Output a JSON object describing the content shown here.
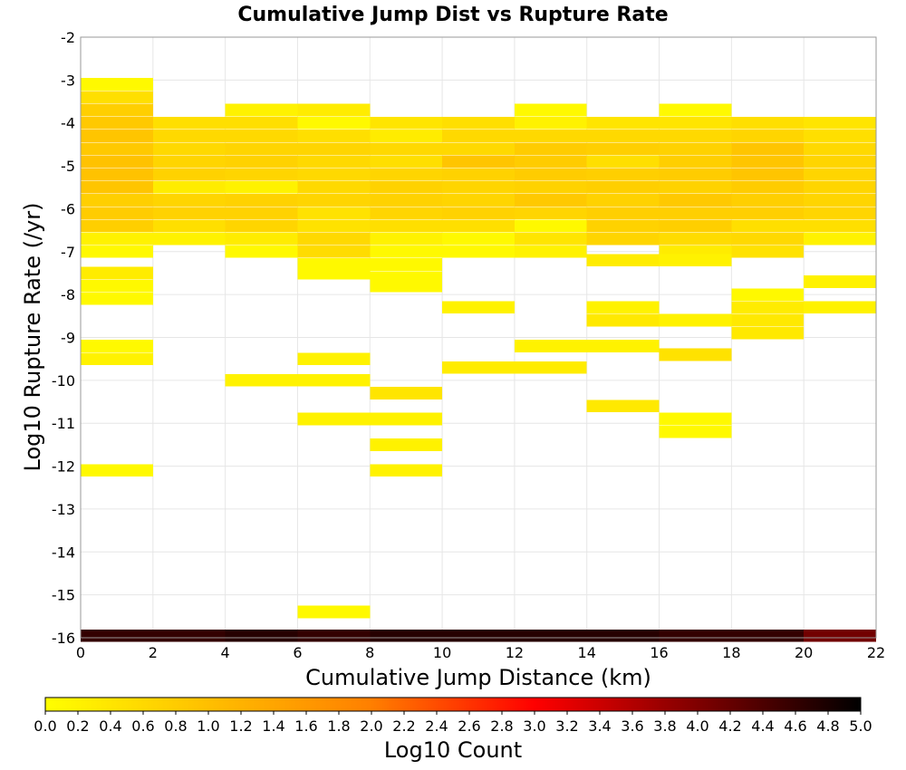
{
  "chart_data": {
    "type": "heatmap",
    "title": "Cumulative Jump Dist vs Rupture Rate",
    "xlabel": "Cumulative Jump Distance (km)",
    "ylabel": "Log10 Rupture Rate (/yr)",
    "xlim": [
      0,
      22
    ],
    "ylim": [
      -16,
      -2
    ],
    "x_ticks": [
      "0",
      "2",
      "4",
      "6",
      "8",
      "10",
      "12",
      "14",
      "16",
      "18",
      "20",
      "22"
    ],
    "y_ticks": [
      "-2",
      "-3",
      "-4",
      "-5",
      "-6",
      "-7",
      "-8",
      "-9",
      "-10",
      "-11",
      "-12",
      "-13",
      "-14",
      "-15",
      "-16"
    ],
    "x_bin_width": 2,
    "y_bin_height": 0.29,
    "grid": true,
    "colorbar": {
      "label": "Log10 Count",
      "range": [
        0,
        5
      ],
      "ticks": [
        "0.0",
        "0.2",
        "0.4",
        "0.6",
        "0.8",
        "1.0",
        "1.2",
        "1.4",
        "1.6",
        "1.8",
        "2.0",
        "2.2",
        "2.4",
        "2.6",
        "2.8",
        "3.0",
        "3.2",
        "3.4",
        "3.6",
        "3.8",
        "4.0",
        "4.2",
        "4.4",
        "4.6",
        "4.8",
        "5.0"
      ],
      "colors": [
        "#ffff00",
        "#ffbf00",
        "#ff7f00",
        "#ff0000",
        "#7f0000",
        "#000000"
      ]
    },
    "cells": [
      {
        "x": 1,
        "y": -3.1,
        "v": 0.1
      },
      {
        "x": 1,
        "y": -3.4,
        "v": 0.5
      },
      {
        "x": 1,
        "y": -3.7,
        "v": 0.75
      },
      {
        "x": 1,
        "y": -4.0,
        "v": 0.85
      },
      {
        "x": 1,
        "y": -4.3,
        "v": 0.9
      },
      {
        "x": 1,
        "y": -4.6,
        "v": 0.85
      },
      {
        "x": 1,
        "y": -4.9,
        "v": 0.95
      },
      {
        "x": 1,
        "y": -5.2,
        "v": 0.95
      },
      {
        "x": 1,
        "y": -5.5,
        "v": 0.9
      },
      {
        "x": 1,
        "y": -5.8,
        "v": 0.75
      },
      {
        "x": 1,
        "y": -6.1,
        "v": 0.8
      },
      {
        "x": 1,
        "y": -6.4,
        "v": 0.75
      },
      {
        "x": 1,
        "y": -6.7,
        "v": 0.2
      },
      {
        "x": 1,
        "y": -7.0,
        "v": 0.1
      },
      {
        "x": 1,
        "y": -7.5,
        "v": 0.3
      },
      {
        "x": 1,
        "y": -7.8,
        "v": 0.1
      },
      {
        "x": 1,
        "y": -8.1,
        "v": 0.1
      },
      {
        "x": 1,
        "y": -9.2,
        "v": 0.1
      },
      {
        "x": 1,
        "y": -9.5,
        "v": 0.2
      },
      {
        "x": 1,
        "y": -12.1,
        "v": 0.1
      },
      {
        "x": 3,
        "y": -4.0,
        "v": 0.5
      },
      {
        "x": 3,
        "y": -4.3,
        "v": 0.6
      },
      {
        "x": 3,
        "y": -4.6,
        "v": 0.6
      },
      {
        "x": 3,
        "y": -4.9,
        "v": 0.65
      },
      {
        "x": 3,
        "y": -5.2,
        "v": 0.7
      },
      {
        "x": 3,
        "y": -5.5,
        "v": 0.3
      },
      {
        "x": 3,
        "y": -5.8,
        "v": 0.65
      },
      {
        "x": 3,
        "y": -6.1,
        "v": 0.7
      },
      {
        "x": 3,
        "y": -6.4,
        "v": 0.5
      },
      {
        "x": 3,
        "y": -6.7,
        "v": 0.2
      },
      {
        "x": 5,
        "y": -3.7,
        "v": 0.2
      },
      {
        "x": 5,
        "y": -4.0,
        "v": 0.5
      },
      {
        "x": 5,
        "y": -4.3,
        "v": 0.6
      },
      {
        "x": 5,
        "y": -4.6,
        "v": 0.65
      },
      {
        "x": 5,
        "y": -4.9,
        "v": 0.7
      },
      {
        "x": 5,
        "y": -5.2,
        "v": 0.65
      },
      {
        "x": 5,
        "y": -5.5,
        "v": 0.2
      },
      {
        "x": 5,
        "y": -5.8,
        "v": 0.7
      },
      {
        "x": 5,
        "y": -6.1,
        "v": 0.7
      },
      {
        "x": 5,
        "y": -6.4,
        "v": 0.65
      },
      {
        "x": 5,
        "y": -6.7,
        "v": 0.3
      },
      {
        "x": 5,
        "y": -7.0,
        "v": 0.1
      },
      {
        "x": 5,
        "y": -10.0,
        "v": 0.2
      },
      {
        "x": 7,
        "y": -3.7,
        "v": 0.3
      },
      {
        "x": 7,
        "y": -4.0,
        "v": 0.1
      },
      {
        "x": 7,
        "y": -4.3,
        "v": 0.5
      },
      {
        "x": 7,
        "y": -4.6,
        "v": 0.65
      },
      {
        "x": 7,
        "y": -4.9,
        "v": 0.6
      },
      {
        "x": 7,
        "y": -5.2,
        "v": 0.6
      },
      {
        "x": 7,
        "y": -5.5,
        "v": 0.6
      },
      {
        "x": 7,
        "y": -5.8,
        "v": 0.65
      },
      {
        "x": 7,
        "y": -6.1,
        "v": 0.45
      },
      {
        "x": 7,
        "y": -6.4,
        "v": 0.45
      },
      {
        "x": 7,
        "y": -6.7,
        "v": 0.6
      },
      {
        "x": 7,
        "y": -7.0,
        "v": 0.55
      },
      {
        "x": 7,
        "y": -7.3,
        "v": 0.1
      },
      {
        "x": 7,
        "y": -7.5,
        "v": 0.1
      },
      {
        "x": 7,
        "y": -9.5,
        "v": 0.2
      },
      {
        "x": 7,
        "y": -10.0,
        "v": 0.2
      },
      {
        "x": 7,
        "y": -10.9,
        "v": 0.2
      },
      {
        "x": 7,
        "y": -15.4,
        "v": 0.1
      },
      {
        "x": 9,
        "y": -4.0,
        "v": 0.4
      },
      {
        "x": 9,
        "y": -4.3,
        "v": 0.3
      },
      {
        "x": 9,
        "y": -4.6,
        "v": 0.6
      },
      {
        "x": 9,
        "y": -4.9,
        "v": 0.5
      },
      {
        "x": 9,
        "y": -5.2,
        "v": 0.65
      },
      {
        "x": 9,
        "y": -5.5,
        "v": 0.7
      },
      {
        "x": 9,
        "y": -5.8,
        "v": 0.7
      },
      {
        "x": 9,
        "y": -6.1,
        "v": 0.65
      },
      {
        "x": 9,
        "y": -6.4,
        "v": 0.5
      },
      {
        "x": 9,
        "y": -6.7,
        "v": 0.2
      },
      {
        "x": 9,
        "y": -7.0,
        "v": 0.1
      },
      {
        "x": 9,
        "y": -7.3,
        "v": 0.1
      },
      {
        "x": 9,
        "y": -7.6,
        "v": 0.1
      },
      {
        "x": 9,
        "y": -7.8,
        "v": 0.1
      },
      {
        "x": 9,
        "y": -10.3,
        "v": 0.4
      },
      {
        "x": 9,
        "y": -10.9,
        "v": 0.2
      },
      {
        "x": 9,
        "y": -11.5,
        "v": 0.2
      },
      {
        "x": 9,
        "y": -12.1,
        "v": 0.2
      },
      {
        "x": 11,
        "y": -4.0,
        "v": 0.5
      },
      {
        "x": 11,
        "y": -4.3,
        "v": 0.6
      },
      {
        "x": 11,
        "y": -4.6,
        "v": 0.6
      },
      {
        "x": 11,
        "y": -4.9,
        "v": 0.9
      },
      {
        "x": 11,
        "y": -5.2,
        "v": 0.7
      },
      {
        "x": 11,
        "y": -5.5,
        "v": 0.65
      },
      {
        "x": 11,
        "y": -5.8,
        "v": 0.65
      },
      {
        "x": 11,
        "y": -6.1,
        "v": 0.7
      },
      {
        "x": 11,
        "y": -6.4,
        "v": 0.5
      },
      {
        "x": 11,
        "y": -6.7,
        "v": 0.1
      },
      {
        "x": 11,
        "y": -7.0,
        "v": 0.1
      },
      {
        "x": 11,
        "y": -8.3,
        "v": 0.2
      },
      {
        "x": 11,
        "y": -9.7,
        "v": 0.3
      },
      {
        "x": 13,
        "y": -3.7,
        "v": 0.1
      },
      {
        "x": 13,
        "y": -4.0,
        "v": 0.2
      },
      {
        "x": 13,
        "y": -4.3,
        "v": 0.6
      },
      {
        "x": 13,
        "y": -4.6,
        "v": 0.8
      },
      {
        "x": 13,
        "y": -4.9,
        "v": 0.8
      },
      {
        "x": 13,
        "y": -5.2,
        "v": 0.8
      },
      {
        "x": 13,
        "y": -5.5,
        "v": 0.7
      },
      {
        "x": 13,
        "y": -5.8,
        "v": 0.85
      },
      {
        "x": 13,
        "y": -6.1,
        "v": 0.65
      },
      {
        "x": 13,
        "y": -6.4,
        "v": 0.1
      },
      {
        "x": 13,
        "y": -6.7,
        "v": 0.4
      },
      {
        "x": 13,
        "y": -7.0,
        "v": 0.2
      },
      {
        "x": 13,
        "y": -9.2,
        "v": 0.2
      },
      {
        "x": 13,
        "y": -9.7,
        "v": 0.3
      },
      {
        "x": 15,
        "y": -4.0,
        "v": 0.4
      },
      {
        "x": 15,
        "y": -4.3,
        "v": 0.6
      },
      {
        "x": 15,
        "y": -4.6,
        "v": 0.75
      },
      {
        "x": 15,
        "y": -4.9,
        "v": 0.5
      },
      {
        "x": 15,
        "y": -5.2,
        "v": 0.75
      },
      {
        "x": 15,
        "y": -5.5,
        "v": 0.75
      },
      {
        "x": 15,
        "y": -5.8,
        "v": 0.7
      },
      {
        "x": 15,
        "y": -6.1,
        "v": 0.75
      },
      {
        "x": 15,
        "y": -6.4,
        "v": 0.7
      },
      {
        "x": 15,
        "y": -6.7,
        "v": 0.65
      },
      {
        "x": 15,
        "y": -7.2,
        "v": 0.3
      },
      {
        "x": 15,
        "y": -8.3,
        "v": 0.2
      },
      {
        "x": 15,
        "y": -8.6,
        "v": 0.35
      },
      {
        "x": 15,
        "y": -9.2,
        "v": 0.2
      },
      {
        "x": 15,
        "y": -10.6,
        "v": 0.35
      },
      {
        "x": 17,
        "y": -3.7,
        "v": 0.1
      },
      {
        "x": 17,
        "y": -4.0,
        "v": 0.4
      },
      {
        "x": 17,
        "y": -4.3,
        "v": 0.6
      },
      {
        "x": 17,
        "y": -4.6,
        "v": 0.7
      },
      {
        "x": 17,
        "y": -4.9,
        "v": 0.75
      },
      {
        "x": 17,
        "y": -5.2,
        "v": 0.8
      },
      {
        "x": 17,
        "y": -5.5,
        "v": 0.7
      },
      {
        "x": 17,
        "y": -5.8,
        "v": 0.85
      },
      {
        "x": 17,
        "y": -6.1,
        "v": 0.75
      },
      {
        "x": 17,
        "y": -6.4,
        "v": 0.75
      },
      {
        "x": 17,
        "y": -6.7,
        "v": 0.55
      },
      {
        "x": 17,
        "y": -7.0,
        "v": 0.3
      },
      {
        "x": 17,
        "y": -7.2,
        "v": 0.2
      },
      {
        "x": 17,
        "y": -8.6,
        "v": 0.2
      },
      {
        "x": 17,
        "y": -9.4,
        "v": 0.45
      },
      {
        "x": 17,
        "y": -10.9,
        "v": 0.1
      },
      {
        "x": 17,
        "y": -11.2,
        "v": 0.1
      },
      {
        "x": 19,
        "y": -4.0,
        "v": 0.5
      },
      {
        "x": 19,
        "y": -4.3,
        "v": 0.65
      },
      {
        "x": 19,
        "y": -4.6,
        "v": 0.9
      },
      {
        "x": 19,
        "y": -4.9,
        "v": 0.9
      },
      {
        "x": 19,
        "y": -5.2,
        "v": 0.9
      },
      {
        "x": 19,
        "y": -5.5,
        "v": 0.8
      },
      {
        "x": 19,
        "y": -5.8,
        "v": 0.75
      },
      {
        "x": 19,
        "y": -6.1,
        "v": 0.75
      },
      {
        "x": 19,
        "y": -6.4,
        "v": 0.5
      },
      {
        "x": 19,
        "y": -6.7,
        "v": 0.6
      },
      {
        "x": 19,
        "y": -7.0,
        "v": 0.45
      },
      {
        "x": 19,
        "y": -8.0,
        "v": 0.1
      },
      {
        "x": 19,
        "y": -8.3,
        "v": 0.3
      },
      {
        "x": 19,
        "y": -8.6,
        "v": 0.35
      },
      {
        "x": 19,
        "y": -8.9,
        "v": 0.35
      },
      {
        "x": 21,
        "y": -4.0,
        "v": 0.4
      },
      {
        "x": 21,
        "y": -4.3,
        "v": 0.5
      },
      {
        "x": 21,
        "y": -4.6,
        "v": 0.6
      },
      {
        "x": 21,
        "y": -4.9,
        "v": 0.65
      },
      {
        "x": 21,
        "y": -5.2,
        "v": 0.65
      },
      {
        "x": 21,
        "y": -5.5,
        "v": 0.65
      },
      {
        "x": 21,
        "y": -5.8,
        "v": 0.65
      },
      {
        "x": 21,
        "y": -6.1,
        "v": 0.65
      },
      {
        "x": 21,
        "y": -6.4,
        "v": 0.5
      },
      {
        "x": 21,
        "y": -6.7,
        "v": 0.2
      },
      {
        "x": 21,
        "y": -7.7,
        "v": 0.2
      },
      {
        "x": 21,
        "y": -8.3,
        "v": 0.2
      },
      {
        "x": 1,
        "y": -15.95,
        "v": 4.6
      },
      {
        "x": 3,
        "y": -15.95,
        "v": 4.6
      },
      {
        "x": 5,
        "y": -15.95,
        "v": 4.7
      },
      {
        "x": 7,
        "y": -15.95,
        "v": 4.6
      },
      {
        "x": 9,
        "y": -15.95,
        "v": 4.7
      },
      {
        "x": 11,
        "y": -15.95,
        "v": 4.7
      },
      {
        "x": 13,
        "y": -15.95,
        "v": 4.7
      },
      {
        "x": 15,
        "y": -15.95,
        "v": 4.7
      },
      {
        "x": 17,
        "y": -15.95,
        "v": 4.6
      },
      {
        "x": 19,
        "y": -15.95,
        "v": 4.6
      },
      {
        "x": 21,
        "y": -15.95,
        "v": 4.1
      }
    ]
  }
}
